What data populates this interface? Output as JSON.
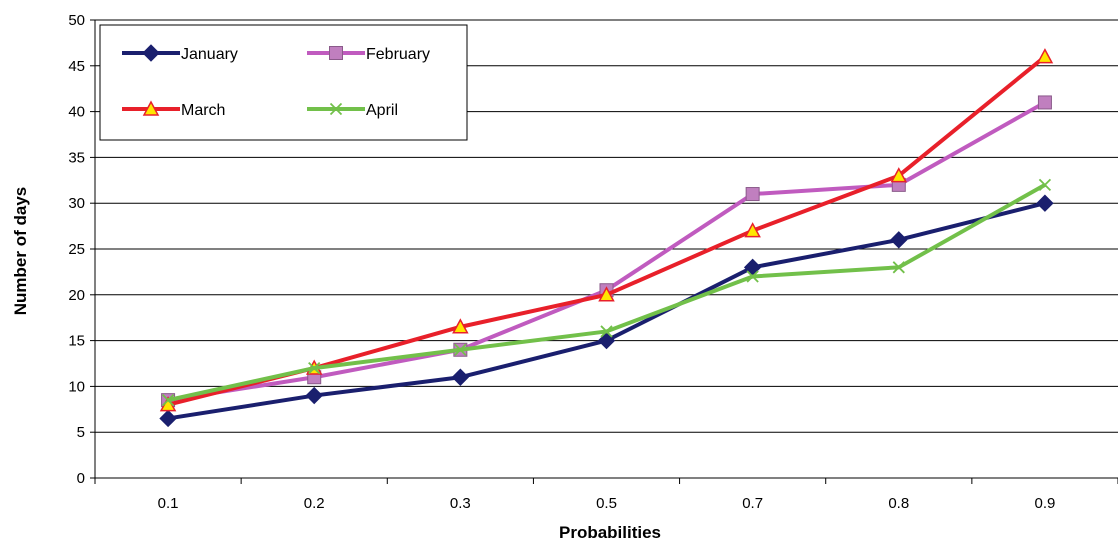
{
  "chart_data": {
    "type": "line",
    "title": "",
    "xlabel": "Probabilities",
    "ylabel": "Number of days",
    "categories": [
      "0.1",
      "0.2",
      "0.3",
      "0.5",
      "0.7",
      "0.8",
      "0.9"
    ],
    "ylim": [
      0,
      50
    ],
    "yticks": [
      0,
      5,
      10,
      15,
      20,
      25,
      30,
      35,
      40,
      45,
      50
    ],
    "grid": "horizontal",
    "legend": "top-left",
    "series": [
      {
        "name": "January",
        "color": "#1a1f6e",
        "marker": "diamond",
        "values": [
          6.5,
          9,
          11,
          15,
          23,
          26,
          30
        ]
      },
      {
        "name": "February",
        "color": "#c05bbf",
        "marker": "square",
        "values": [
          8.5,
          11,
          14,
          20.5,
          31,
          32,
          41
        ]
      },
      {
        "name": "March",
        "color": "#e8202a",
        "marker": "triangle",
        "values": [
          8,
          12,
          16.5,
          20,
          27,
          33,
          46
        ]
      },
      {
        "name": "April",
        "color": "#72c04a",
        "marker": "x",
        "values": [
          8.5,
          12,
          14,
          16,
          22,
          23,
          32
        ]
      }
    ]
  }
}
